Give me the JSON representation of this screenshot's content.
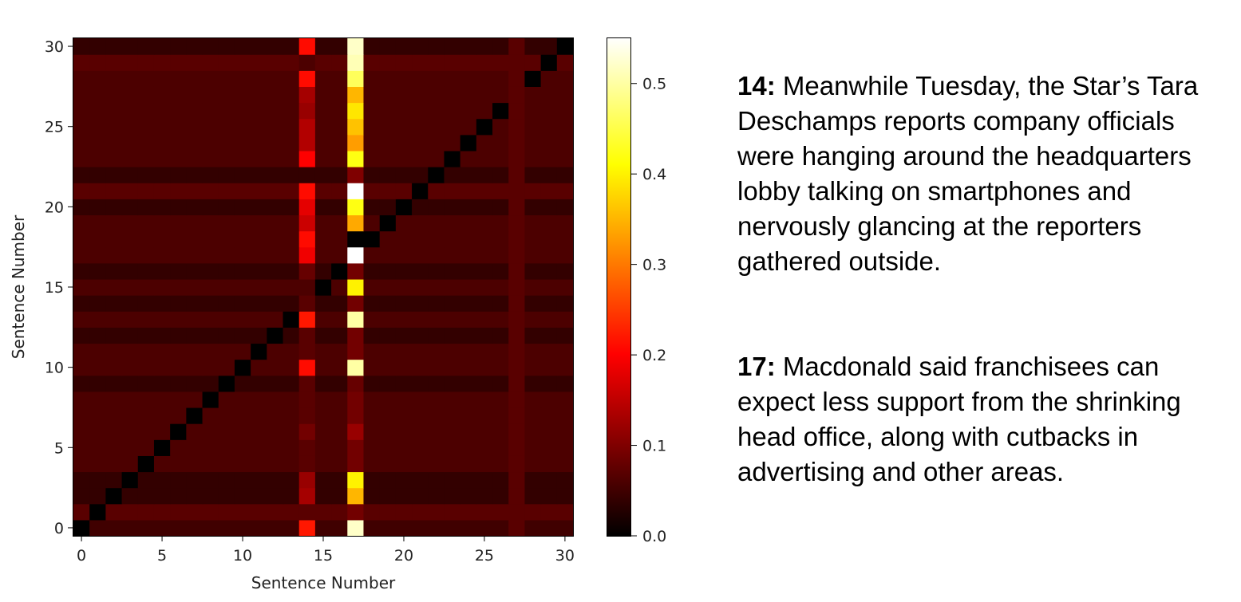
{
  "chart_data": {
    "type": "heatmap",
    "title": "",
    "xlabel": "Sentence Number",
    "ylabel": "Sentence Number",
    "size": 31,
    "x_range": [
      0,
      30
    ],
    "y_range": [
      0,
      30
    ],
    "x_ticks": [
      0,
      5,
      10,
      15,
      20,
      25,
      30
    ],
    "y_ticks": [
      0,
      5,
      10,
      15,
      20,
      25,
      30
    ],
    "colormap": "hot",
    "color_range": [
      0,
      0.55
    ],
    "colorbar_ticks": [
      "0.0",
      "0.1",
      "0.2",
      "0.3",
      "0.4",
      "0.5"
    ],
    "colorbar_tick_values": [
      0,
      0.1,
      0.2,
      0.3,
      0.4,
      0.5
    ],
    "background_level": 0.04,
    "column_14_values": [
      0.22,
      0.07,
      0.13,
      0.12,
      0.07,
      0.07,
      0.09,
      0.07,
      0.07,
      0.07,
      0.21,
      0.07,
      0.07,
      0.22,
      0.07,
      0.06,
      0.08,
      0.19,
      0.21,
      0.16,
      0.18,
      0.21,
      0.04,
      0.2,
      0.14,
      0.14,
      0.12,
      0.13,
      0.21,
      0.06,
      0.21
    ],
    "column_17_values": [
      0.52,
      0.09,
      0.35,
      0.4,
      0.09,
      0.09,
      0.12,
      0.09,
      0.09,
      0.08,
      0.5,
      0.09,
      0.09,
      0.5,
      0.09,
      0.4,
      0.09,
      0.55,
      0.0,
      0.34,
      0.42,
      0.55,
      0.1,
      0.42,
      0.33,
      0.36,
      0.39,
      0.35,
      0.46,
      0.51,
      0.52
    ],
    "column_27_values": [
      0.07,
      0.07,
      0.07,
      0.07,
      0.07,
      0.07,
      0.07,
      0.07,
      0.07,
      0.07,
      0.07,
      0.07,
      0.07,
      0.07,
      0.07,
      0.07,
      0.07,
      0.07,
      0.07,
      0.07,
      0.07,
      0.07,
      0.07,
      0.07,
      0.07,
      0.07,
      0.07,
      0.07,
      0.07,
      0.07,
      0.07
    ],
    "row_offsets": [
      0.01,
      0.03,
      0.0,
      0.0,
      0.02,
      0.02,
      0.02,
      0.02,
      0.02,
      0.0,
      0.02,
      0.02,
      0.0,
      0.02,
      0.0,
      0.02,
      0.0,
      0.02,
      0.02,
      0.02,
      0.0,
      0.03,
      0.0,
      0.02,
      0.02,
      0.02,
      0.02,
      0.02,
      0.02,
      0.03,
      0.0
    ],
    "diagonal_value": 0.0
  },
  "annotations": [
    {
      "number": "14:",
      "text": " Meanwhile Tuesday, the Star’s Tara Deschamps reports company officials were hanging around the headquarters lobby talking on smartphones and nervously glancing at the reporters gathered outside."
    },
    {
      "number": "17:",
      "text": " Macdonald said franchisees can expect less support from the shrinking head office, along with cutbacks in advertising and other areas."
    }
  ]
}
